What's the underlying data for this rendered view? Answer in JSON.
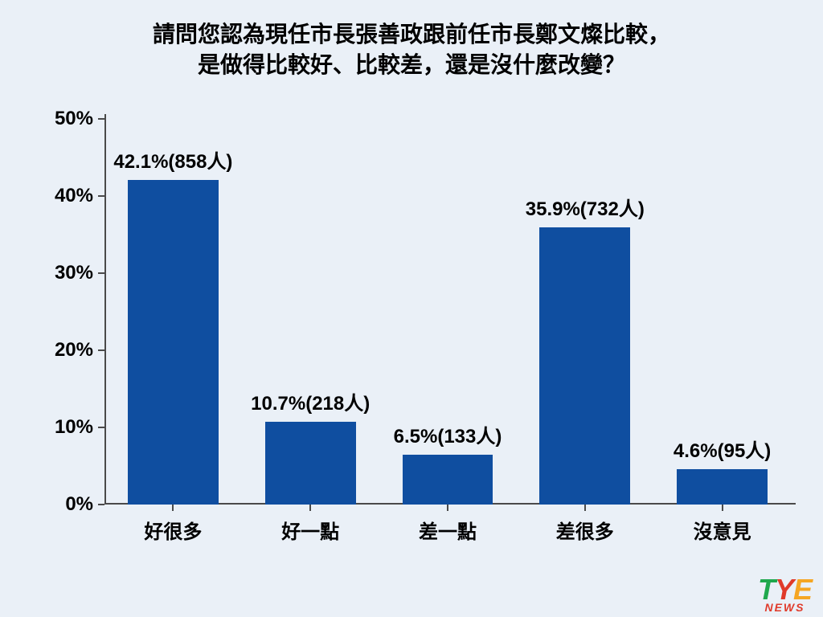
{
  "background_color": "#eaf0f7",
  "title": {
    "line1": "請問您認為現任市長張善政跟前任市長鄭文燦比較，",
    "line2": "是做得比較好、比較差，還是沒什麼改變？",
    "fontsize": 28,
    "color": "#000000"
  },
  "chart": {
    "type": "bar",
    "ylim": [
      0,
      50
    ],
    "ytick_step": 10,
    "y_suffix": "%",
    "axis_color": "#4a4a4a",
    "ytick_fontsize": 24,
    "xtick_fontsize": 24,
    "barlabel_fontsize": 24,
    "bar_color": "#0f4ea0",
    "bar_width_ratio": 0.66,
    "categories": [
      "好很多",
      "好一點",
      "差一點",
      "差很多",
      "沒意見"
    ],
    "values": [
      42.1,
      10.7,
      6.5,
      35.9,
      4.6
    ],
    "counts": [
      858,
      218,
      133,
      732,
      95
    ],
    "label_template": "{pct}%({n}人)"
  },
  "logo": {
    "text": "TYE",
    "sub": "NEWS",
    "char_colors": [
      "#1fa84d",
      "#e03a2a",
      "#f5a623"
    ]
  }
}
